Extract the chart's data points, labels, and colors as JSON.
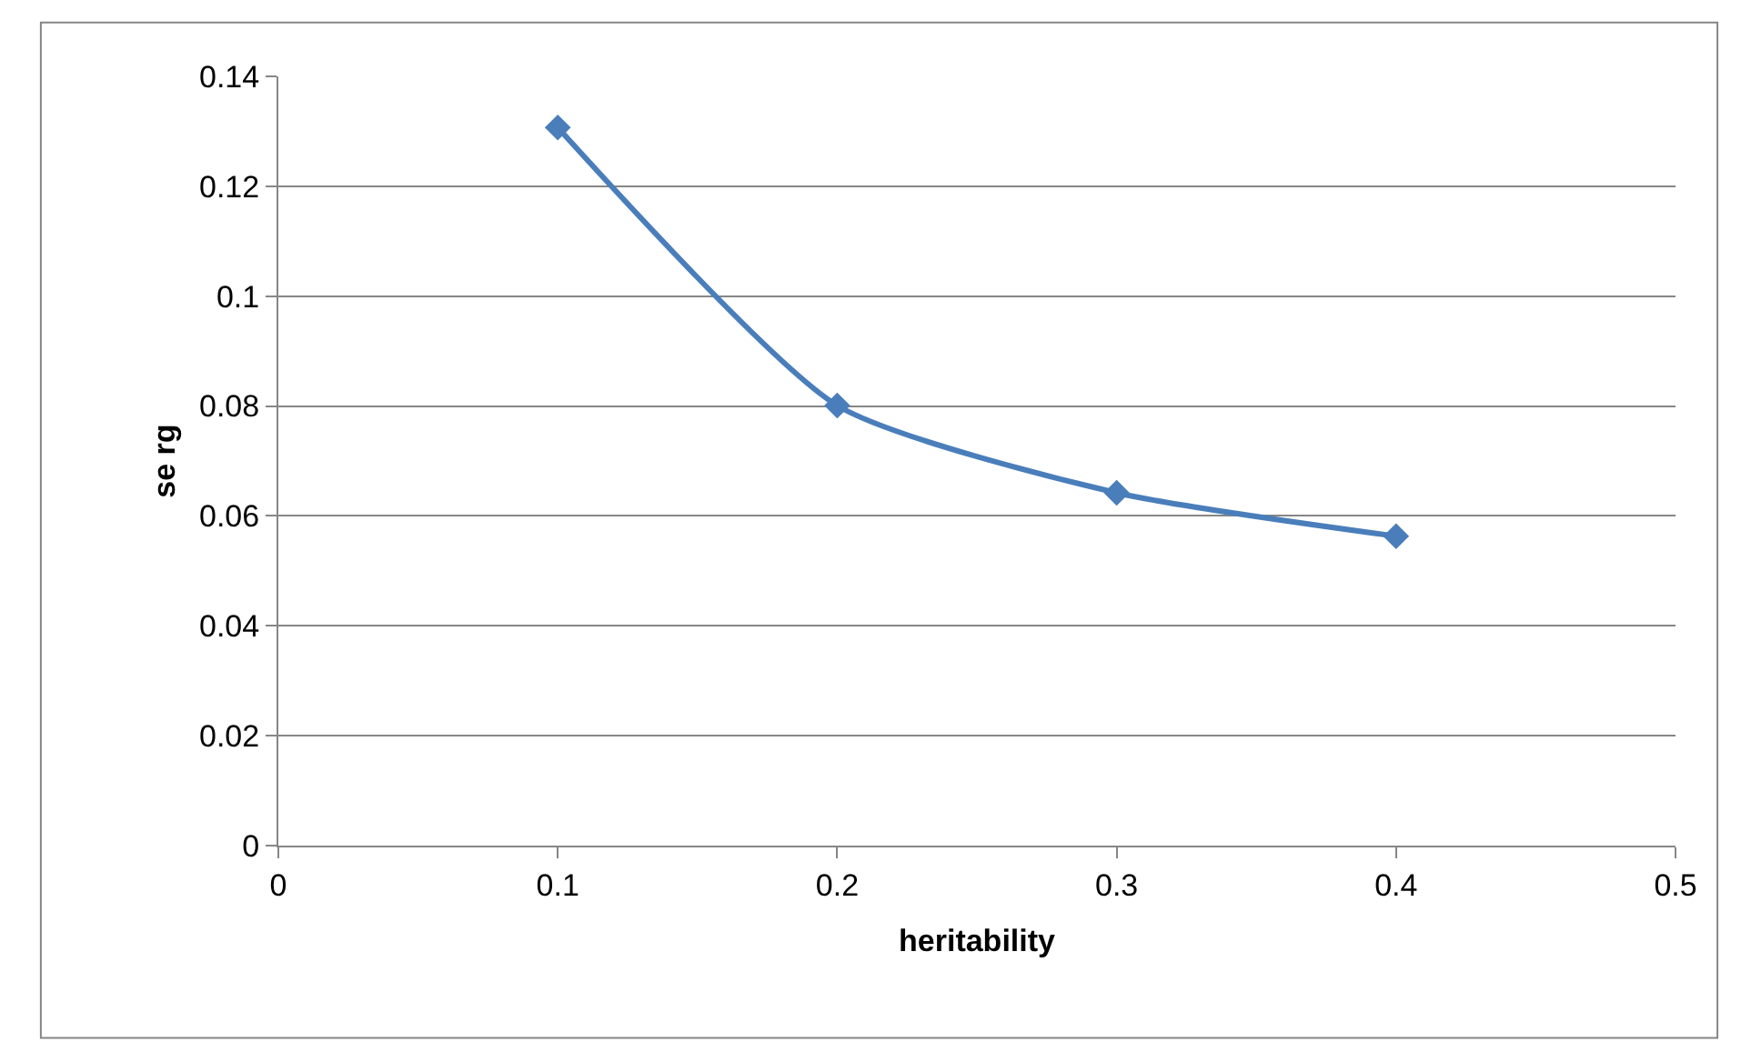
{
  "chart_data": {
    "type": "line",
    "xlabel": "heritability",
    "ylabel": "se rg",
    "x": [
      0.1,
      0.2,
      0.3,
      0.4
    ],
    "series": [
      {
        "color": "#4a7ebb",
        "values": [
          0.1307,
          0.0801,
          0.0642,
          0.0563
        ]
      }
    ],
    "xlim": [
      0,
      0.5
    ],
    "xticks": [
      0,
      0.1,
      0.2,
      0.3,
      0.4,
      0.5
    ],
    "ylim": [
      0,
      0.14
    ],
    "yticks": [
      0,
      0.02,
      0.04,
      0.06,
      0.08,
      0.1,
      0.12,
      0.14
    ],
    "grid": "y",
    "legend": false,
    "marker": "diamond",
    "line_style": "solid"
  }
}
